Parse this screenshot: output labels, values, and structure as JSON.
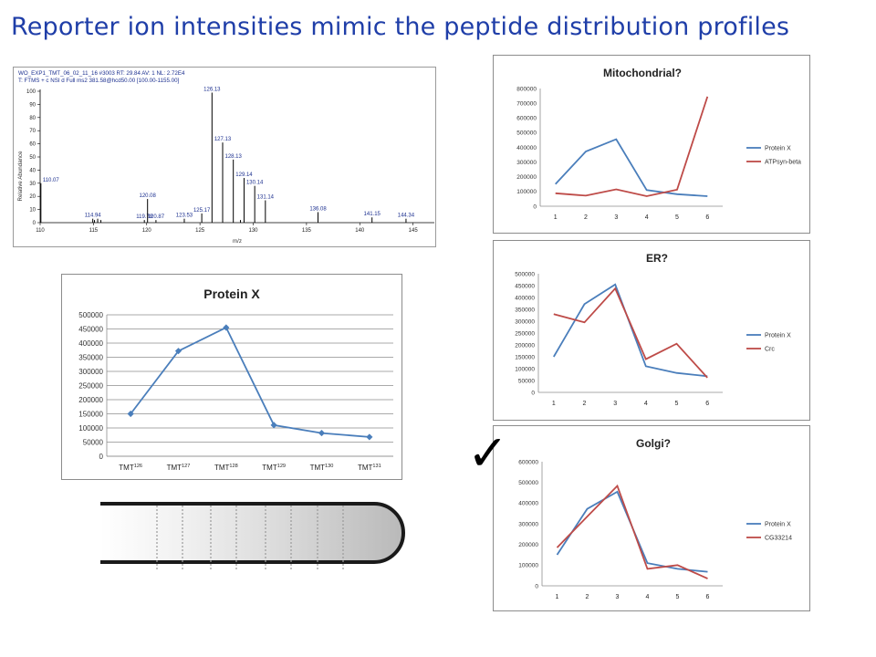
{
  "slide": {
    "title": "Reporter ion intensities mimic the peptide distribution profiles"
  },
  "spectrum": {
    "header_line1": "WO_EXP1_TMT_06_02_11_16 #3003   RT: 29.84   AV: 1   NL: 2.72E4",
    "header_line2": "T: FTMS + c NSI d Full ms2 381.58@hcd50.00 [100.00-1155.00]",
    "ylabel": "Relative Abundance",
    "xlabel": "m/z",
    "xlim": [
      110,
      147
    ],
    "ylim": [
      0,
      100
    ],
    "x_ticks": [
      "110",
      "115",
      "120",
      "125",
      "130",
      "135",
      "140",
      "145"
    ],
    "y_ticks": [
      "0",
      "10",
      "20",
      "30",
      "40",
      "50",
      "60",
      "70",
      "80",
      "90",
      "100"
    ],
    "peaks": [
      {
        "mz": 110.07,
        "intensity": 30,
        "label": "110.07"
      },
      {
        "mz": 114.94,
        "intensity": 3,
        "label": "114.94"
      },
      {
        "mz": 115.1,
        "intensity": 2,
        "label": ""
      },
      {
        "mz": 115.4,
        "intensity": 3,
        "label": ""
      },
      {
        "mz": 115.7,
        "intensity": 2,
        "label": ""
      },
      {
        "mz": 119.78,
        "intensity": 2,
        "label": "119.78"
      },
      {
        "mz": 120.08,
        "intensity": 18,
        "label": "120.08"
      },
      {
        "mz": 120.87,
        "intensity": 2,
        "label": "120.87"
      },
      {
        "mz": 123.53,
        "intensity": 3,
        "label": "123.53"
      },
      {
        "mz": 125.17,
        "intensity": 7,
        "label": "125.17"
      },
      {
        "mz": 126.13,
        "intensity": 99,
        "label": "126.13"
      },
      {
        "mz": 127.13,
        "intensity": 61,
        "label": "127.13"
      },
      {
        "mz": 128.13,
        "intensity": 48,
        "label": "128.13"
      },
      {
        "mz": 128.8,
        "intensity": 2,
        "label": ""
      },
      {
        "mz": 129.14,
        "intensity": 34,
        "label": "129.14"
      },
      {
        "mz": 130.14,
        "intensity": 28,
        "label": "130.14"
      },
      {
        "mz": 131.14,
        "intensity": 17,
        "label": "131.14"
      },
      {
        "mz": 136.08,
        "intensity": 8,
        "label": "136.08"
      },
      {
        "mz": 141.15,
        "intensity": 4,
        "label": "141.15"
      },
      {
        "mz": 144.34,
        "intensity": 3,
        "label": "144.34"
      }
    ]
  },
  "check_mark": "✓",
  "chart_data": [
    {
      "id": "protein-x",
      "type": "line",
      "title": "Protein X",
      "categories": [
        "TMT126",
        "TMT127",
        "TMT128",
        "TMT129",
        "TMT130",
        "TMT131"
      ],
      "category_base": "TMT",
      "category_sup": [
        "126",
        "127",
        "128",
        "129",
        "130",
        "131"
      ],
      "ylim": [
        0,
        500000
      ],
      "y_ticks": [
        "0",
        "50000",
        "100000",
        "150000",
        "200000",
        "250000",
        "300000",
        "350000",
        "400000",
        "450000",
        "500000"
      ],
      "grid": true,
      "series": [
        {
          "name": "",
          "color": "#4a7ebb",
          "values": [
            150000,
            372000,
            455000,
            110000,
            82000,
            68000
          ],
          "markers": true
        }
      ]
    },
    {
      "id": "mitochondrial",
      "type": "line",
      "title": "Mitochondrial?",
      "categories": [
        "1",
        "2",
        "3",
        "4",
        "5",
        "6"
      ],
      "ylim": [
        0,
        800000
      ],
      "y_ticks": [
        "0",
        "100000",
        "200000",
        "300000",
        "400000",
        "500000",
        "600000",
        "700000",
        "800000"
      ],
      "grid": false,
      "legend_position": "right",
      "series": [
        {
          "name": "Protein X",
          "color": "#4a7ebb",
          "values": [
            150000,
            372000,
            455000,
            110000,
            82000,
            68000
          ]
        },
        {
          "name": "ATPsyn-beta",
          "color": "#be4b48",
          "values": [
            88000,
            72000,
            115000,
            68000,
            112000,
            745000
          ]
        }
      ]
    },
    {
      "id": "er",
      "type": "line",
      "title": "ER?",
      "categories": [
        "1",
        "2",
        "3",
        "4",
        "5",
        "6"
      ],
      "ylim": [
        0,
        500000
      ],
      "y_ticks": [
        "0",
        "50000",
        "100000",
        "150000",
        "200000",
        "250000",
        "300000",
        "350000",
        "400000",
        "450000",
        "500000"
      ],
      "grid": false,
      "legend_position": "right",
      "series": [
        {
          "name": "Protein X",
          "color": "#4a7ebb",
          "values": [
            150000,
            372000,
            455000,
            110000,
            82000,
            68000
          ]
        },
        {
          "name": "Crc",
          "color": "#be4b48",
          "values": [
            330000,
            295000,
            438000,
            140000,
            205000,
            62000
          ]
        }
      ]
    },
    {
      "id": "golgi",
      "type": "line",
      "title": "Golgi?",
      "categories": [
        "1",
        "2",
        "3",
        "4",
        "5",
        "6"
      ],
      "ylim": [
        0,
        600000
      ],
      "y_ticks": [
        "0",
        "100000",
        "200000",
        "300000",
        "400000",
        "500000",
        "600000"
      ],
      "grid": false,
      "legend_position": "right",
      "series": [
        {
          "name": "Protein X",
          "color": "#4a7ebb",
          "values": [
            150000,
            372000,
            455000,
            110000,
            82000,
            68000
          ]
        },
        {
          "name": "CG33214",
          "color": "#be4b48",
          "values": [
            185000,
            335000,
            483000,
            82000,
            100000,
            35000
          ]
        }
      ]
    }
  ]
}
